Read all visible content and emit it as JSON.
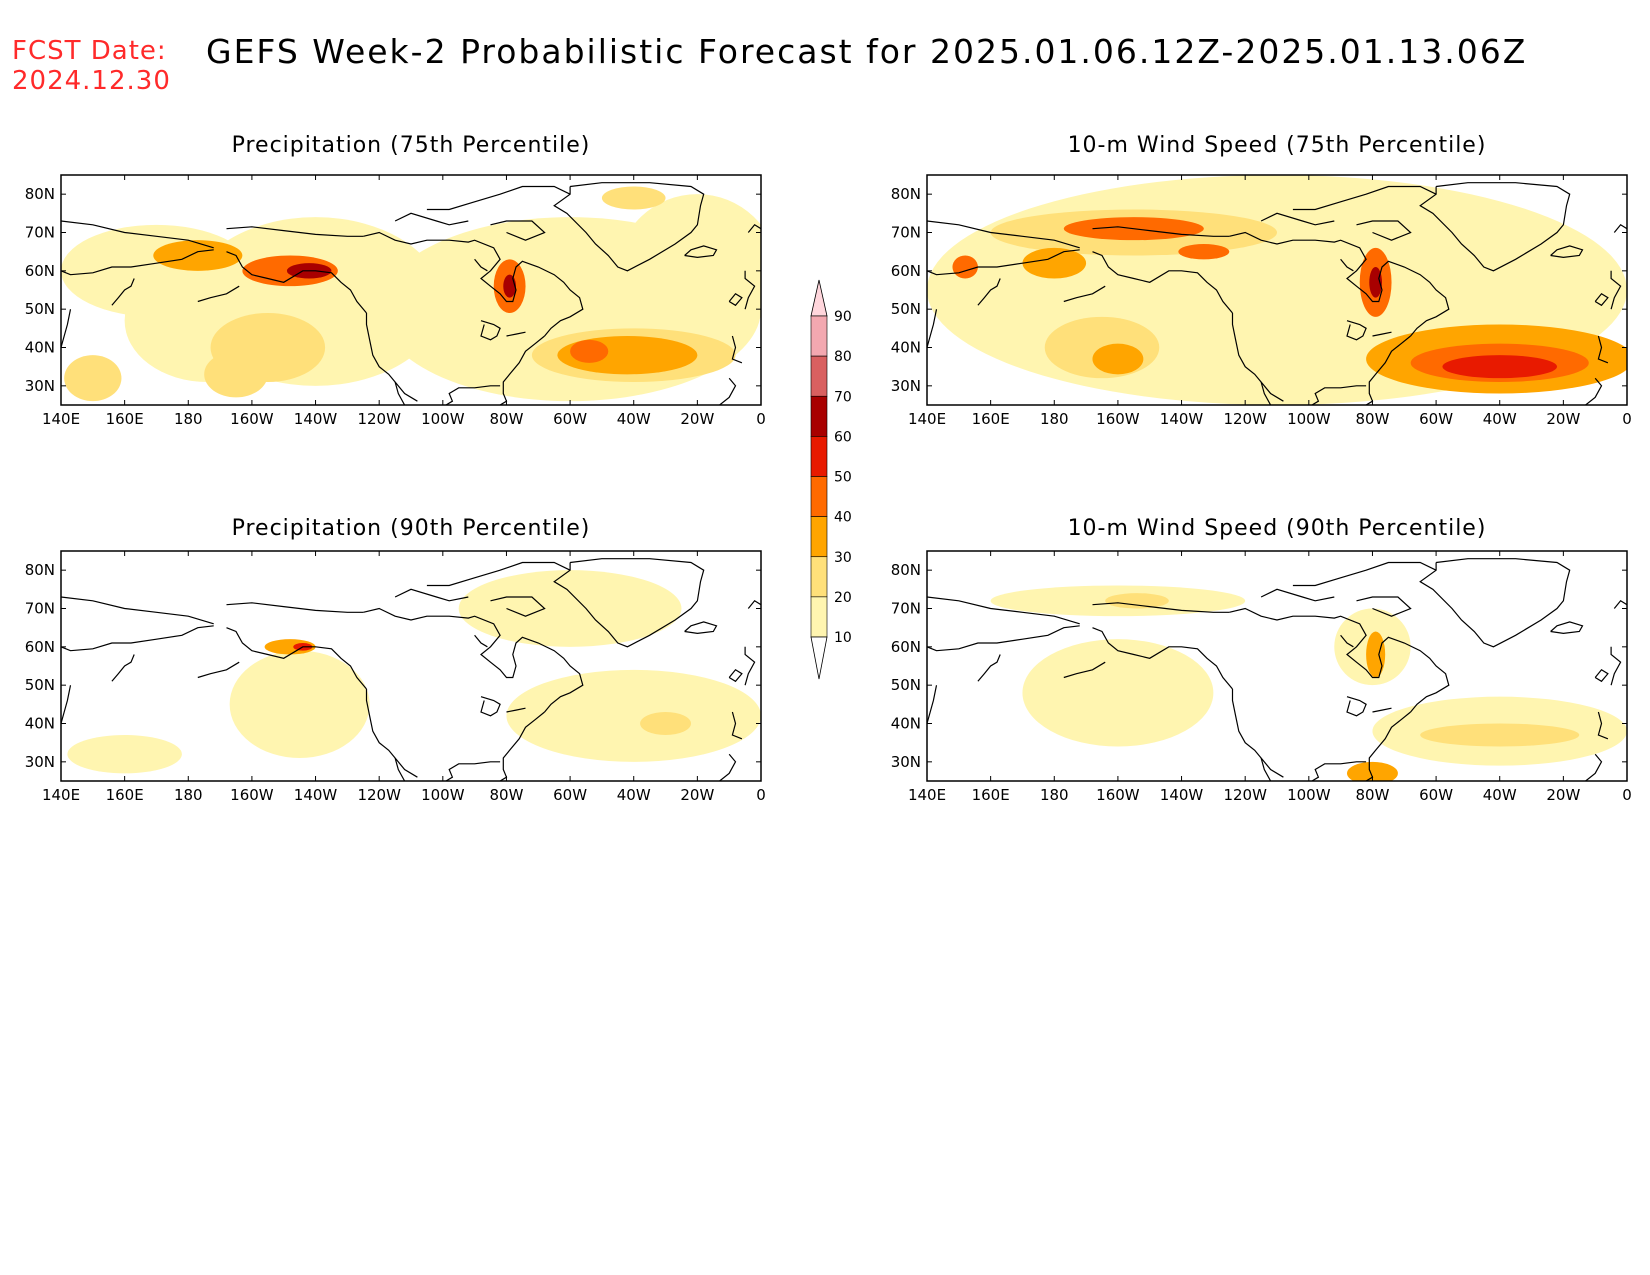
{
  "header": {
    "fcst_label": "FCST Date:",
    "fcst_date": "2024.12.30",
    "title": "GEFS Week-2 Probabilistic Forecast for 2025.01.06.12Z-2025.01.13.06Z"
  },
  "colors": {
    "levels": [
      "#ffffff",
      "#fff5b0",
      "#ffe07a",
      "#ffa500",
      "#ff6a00",
      "#e81a00",
      "#a80000",
      "#d96060",
      "#f3a8b0",
      "#ffd6dc"
    ],
    "coast": "#000000",
    "date_text": "#ff2a2a"
  },
  "colorbar": {
    "labels": [
      "10",
      "20",
      "30",
      "40",
      "50",
      "60",
      "70",
      "80",
      "90"
    ]
  },
  "map_axes": {
    "lon_labels": [
      "140E",
      "160E",
      "180",
      "160W",
      "140W",
      "120W",
      "100W",
      "80W",
      "60W",
      "40W",
      "20W",
      "0"
    ],
    "lat_labels": [
      "80N",
      "70N",
      "60N",
      "50N",
      "40N",
      "30N"
    ],
    "lon_range": [
      140,
      360
    ],
    "lat_range": [
      25,
      85
    ]
  },
  "panels": [
    {
      "title": "Precipitation (75th Percentile)",
      "blobs": [
        {
          "lon": 186,
          "lat": 47,
          "rx": 26,
          "ry": 16,
          "level": 1
        },
        {
          "lon": 220,
          "lat": 52,
          "rx": 40,
          "ry": 22,
          "level": 1
        },
        {
          "lon": 300,
          "lat": 50,
          "rx": 60,
          "ry": 24,
          "level": 1
        },
        {
          "lon": 170,
          "lat": 60,
          "rx": 30,
          "ry": 12,
          "level": 1
        },
        {
          "lon": 340,
          "lat": 60,
          "rx": 25,
          "ry": 20,
          "level": 1
        },
        {
          "lon": 205,
          "lat": 40,
          "rx": 18,
          "ry": 9,
          "level": 2
        },
        {
          "lon": 195,
          "lat": 33,
          "rx": 10,
          "ry": 6,
          "level": 2
        },
        {
          "lon": 150,
          "lat": 32,
          "rx": 9,
          "ry": 6,
          "level": 2
        },
        {
          "lon": 183,
          "lat": 64,
          "rx": 14,
          "ry": 4,
          "level": 3
        },
        {
          "lon": 212,
          "lat": 60,
          "rx": 15,
          "ry": 4,
          "level": 4
        },
        {
          "lon": 218,
          "lat": 60,
          "rx": 7,
          "ry": 2,
          "level": 6
        },
        {
          "lon": 281,
          "lat": 56,
          "rx": 5,
          "ry": 7,
          "level": 4
        },
        {
          "lon": 281,
          "lat": 56,
          "rx": 2,
          "ry": 3,
          "level": 6
        },
        {
          "lon": 320,
          "lat": 38,
          "rx": 32,
          "ry": 7,
          "level": 2
        },
        {
          "lon": 318,
          "lat": 38,
          "rx": 22,
          "ry": 5,
          "level": 3
        },
        {
          "lon": 306,
          "lat": 39,
          "rx": 6,
          "ry": 3,
          "level": 4
        },
        {
          "lon": 320,
          "lat": 79,
          "rx": 10,
          "ry": 3,
          "level": 2
        }
      ]
    },
    {
      "title": "10-m Wind Speed (75th Percentile)",
      "blobs": [
        {
          "lon": 250,
          "lat": 55,
          "rx": 110,
          "ry": 30,
          "level": 1
        },
        {
          "lon": 205,
          "lat": 70,
          "rx": 45,
          "ry": 6,
          "level": 2
        },
        {
          "lon": 205,
          "lat": 71,
          "rx": 22,
          "ry": 3,
          "level": 4
        },
        {
          "lon": 195,
          "lat": 40,
          "rx": 18,
          "ry": 8,
          "level": 2
        },
        {
          "lon": 200,
          "lat": 37,
          "rx": 8,
          "ry": 4,
          "level": 3
        },
        {
          "lon": 320,
          "lat": 37,
          "rx": 42,
          "ry": 9,
          "level": 3
        },
        {
          "lon": 320,
          "lat": 36,
          "rx": 28,
          "ry": 5,
          "level": 4
        },
        {
          "lon": 320,
          "lat": 35,
          "rx": 18,
          "ry": 3,
          "level": 5
        },
        {
          "lon": 281,
          "lat": 57,
          "rx": 5,
          "ry": 9,
          "level": 4
        },
        {
          "lon": 281,
          "lat": 57,
          "rx": 2,
          "ry": 4,
          "level": 6
        },
        {
          "lon": 227,
          "lat": 65,
          "rx": 8,
          "ry": 2,
          "level": 4
        },
        {
          "lon": 180,
          "lat": 62,
          "rx": 10,
          "ry": 4,
          "level": 3
        },
        {
          "lon": 152,
          "lat": 61,
          "rx": 4,
          "ry": 3,
          "level": 4
        }
      ]
    },
    {
      "title": "Precipitation (90th Percentile)",
      "blobs": [
        {
          "lon": 215,
          "lat": 45,
          "rx": 22,
          "ry": 14,
          "level": 1
        },
        {
          "lon": 320,
          "lat": 42,
          "rx": 40,
          "ry": 12,
          "level": 1
        },
        {
          "lon": 300,
          "lat": 70,
          "rx": 35,
          "ry": 10,
          "level": 1
        },
        {
          "lon": 160,
          "lat": 32,
          "rx": 18,
          "ry": 5,
          "level": 1
        },
        {
          "lon": 212,
          "lat": 60,
          "rx": 8,
          "ry": 2,
          "level": 3
        },
        {
          "lon": 216,
          "lat": 60,
          "rx": 3,
          "ry": 1,
          "level": 5
        },
        {
          "lon": 330,
          "lat": 40,
          "rx": 8,
          "ry": 3,
          "level": 2
        }
      ]
    },
    {
      "title": "10-m Wind Speed (90th Percentile)",
      "blobs": [
        {
          "lon": 200,
          "lat": 48,
          "rx": 30,
          "ry": 14,
          "level": 1
        },
        {
          "lon": 320,
          "lat": 38,
          "rx": 40,
          "ry": 9,
          "level": 1
        },
        {
          "lon": 200,
          "lat": 72,
          "rx": 40,
          "ry": 4,
          "level": 1
        },
        {
          "lon": 280,
          "lat": 60,
          "rx": 12,
          "ry": 10,
          "level": 1
        },
        {
          "lon": 206,
          "lat": 72,
          "rx": 10,
          "ry": 2,
          "level": 2
        },
        {
          "lon": 281,
          "lat": 58,
          "rx": 3,
          "ry": 6,
          "level": 3
        },
        {
          "lon": 280,
          "lat": 27,
          "rx": 8,
          "ry": 3,
          "level": 3
        },
        {
          "lon": 320,
          "lat": 37,
          "rx": 25,
          "ry": 3,
          "level": 2
        }
      ]
    }
  ]
}
